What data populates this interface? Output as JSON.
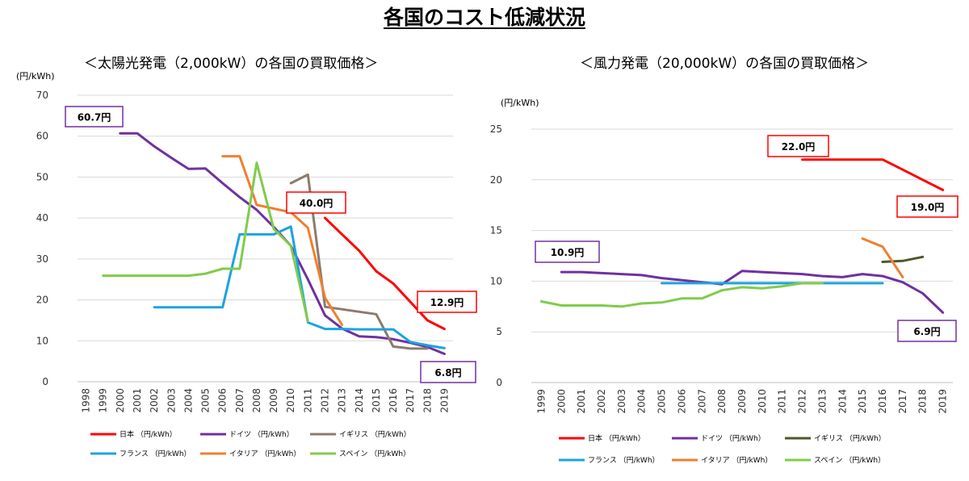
{
  "page": {
    "title": "各国のコスト低減状況"
  },
  "chart_data": [
    {
      "type": "line",
      "title": "＜太陽光発電（2,000kW）の各国の買取価格＞",
      "ylabel": "(円/kWh)",
      "ylim": [
        0,
        70
      ],
      "yticks": [
        0,
        10,
        20,
        30,
        40,
        50,
        60,
        70
      ],
      "grid": true,
      "categories": [
        "1998",
        "1999",
        "2000",
        "2001",
        "2002",
        "2003",
        "2004",
        "2005",
        "2006",
        "2007",
        "2008",
        "2009",
        "2010",
        "2011",
        "2012",
        "2013",
        "2014",
        "2015",
        "2016",
        "2017",
        "2018",
        "2019"
      ],
      "series": [
        {
          "name": "日本 （円/kWh）",
          "color": "#ff0000",
          "points": [
            [
              2012,
              40
            ],
            [
              2013,
              36
            ],
            [
              2014,
              32
            ],
            [
              2015,
              27
            ],
            [
              2016,
              24
            ],
            [
              2017,
              19.5
            ],
            [
              2018,
              15
            ],
            [
              2019,
              12.9
            ]
          ]
        },
        {
          "name": "ドイツ （円/kWh）",
          "color": "#7030a0",
          "points": [
            [
              2000,
              60.7
            ],
            [
              2001,
              60.7
            ],
            [
              2002,
              57.5
            ],
            [
              2003,
              54.7
            ],
            [
              2004,
              52
            ],
            [
              2005,
              52.1
            ],
            [
              2006,
              48.5
            ],
            [
              2007,
              45.1
            ],
            [
              2008,
              42
            ],
            [
              2009,
              37.8
            ],
            [
              2010,
              33.2
            ],
            [
              2011,
              25
            ],
            [
              2012,
              16.2
            ],
            [
              2013,
              13
            ],
            [
              2014,
              11.1
            ],
            [
              2015,
              10.9
            ],
            [
              2016,
              10.4
            ],
            [
              2017,
              9.5
            ],
            [
              2018,
              8.5
            ],
            [
              2019,
              6.8
            ]
          ]
        },
        {
          "name": "イギリス （円/kWh）",
          "color": "#8c7b6b",
          "points": [
            [
              2010,
              48.5
            ],
            [
              2011,
              50.6
            ],
            [
              2012,
              18.3
            ],
            [
              2013,
              17.7
            ],
            [
              2014,
              17.1
            ],
            [
              2015,
              16.5
            ],
            [
              2016,
              8.6
            ],
            [
              2017,
              8.1
            ],
            [
              2018,
              8.1
            ]
          ]
        },
        {
          "name": "フランス （円/kWh）",
          "color": "#1ca3e0",
          "points": [
            [
              2002,
              18.2
            ],
            [
              2003,
              18.2
            ],
            [
              2004,
              18.2
            ],
            [
              2005,
              18.2
            ],
            [
              2006,
              18.2
            ],
            [
              2007,
              36
            ],
            [
              2008,
              36
            ],
            [
              2009,
              36
            ],
            [
              2010,
              37.9
            ],
            [
              2011,
              14.5
            ],
            [
              2012,
              12.9
            ],
            [
              2013,
              12.9
            ],
            [
              2014,
              12.8
            ],
            [
              2015,
              12.8
            ],
            [
              2016,
              12.8
            ],
            [
              2017,
              9.7
            ],
            [
              2018,
              8.9
            ],
            [
              2019,
              8.2
            ]
          ]
        },
        {
          "name": "イタリア （円/kWh）",
          "color": "#f07f30",
          "points": [
            [
              2006,
              55.1
            ],
            [
              2007,
              55.1
            ],
            [
              2008,
              43.2
            ],
            [
              2009,
              42.3
            ],
            [
              2010,
              41.4
            ],
            [
              2011,
              37.6
            ],
            [
              2012,
              20.5
            ],
            [
              2013,
              13.9
            ]
          ]
        },
        {
          "name": "スペイン （円/kWh）",
          "color": "#7fcc4a",
          "points": [
            [
              1999,
              25.9
            ],
            [
              2000,
              25.9
            ],
            [
              2001,
              25.9
            ],
            [
              2002,
              25.9
            ],
            [
              2003,
              25.9
            ],
            [
              2004,
              25.9
            ],
            [
              2005,
              26.4
            ],
            [
              2006,
              27.6
            ],
            [
              2007,
              27.6
            ],
            [
              2008,
              53.5
            ],
            [
              2009,
              37.3
            ],
            [
              2010,
              33.2
            ],
            [
              2011,
              14.8
            ]
          ]
        }
      ],
      "annotations": [
        {
          "text": "60.7円",
          "color": "#7030a0"
        },
        {
          "text": "40.0円",
          "color": "#ff0000"
        },
        {
          "text": "12.9円",
          "color": "#ff0000"
        },
        {
          "text": "6.8円",
          "color": "#7030a0"
        }
      ]
    },
    {
      "type": "line",
      "title": "＜風力発電（20,000kW）の各国の買取価格＞",
      "ylabel": "(円/kWh)",
      "ylim": [
        0,
        25
      ],
      "yticks": [
        0,
        5,
        10,
        15,
        20,
        25
      ],
      "grid": true,
      "categories": [
        "1999",
        "2000",
        "2001",
        "2002",
        "2003",
        "2004",
        "2005",
        "2006",
        "2007",
        "2008",
        "2009",
        "2010",
        "2011",
        "2012",
        "2013",
        "2014",
        "2015",
        "2016",
        "2017",
        "2018",
        "2019"
      ],
      "series": [
        {
          "name": "日本 （円/kWh）",
          "color": "#ff0000",
          "points": [
            [
              2012,
              22
            ],
            [
              2013,
              22
            ],
            [
              2014,
              22
            ],
            [
              2015,
              22
            ],
            [
              2016,
              22
            ],
            [
              2017,
              21
            ],
            [
              2018,
              20
            ],
            [
              2019,
              19
            ]
          ]
        },
        {
          "name": "ドイツ （円/kWh）",
          "color": "#7030a0",
          "points": [
            [
              2000,
              10.9
            ],
            [
              2001,
              10.9
            ],
            [
              2002,
              10.8
            ],
            [
              2003,
              10.7
            ],
            [
              2004,
              10.6
            ],
            [
              2005,
              10.3
            ],
            [
              2006,
              10.1
            ],
            [
              2007,
              9.9
            ],
            [
              2008,
              9.7
            ],
            [
              2009,
              11
            ],
            [
              2010,
              10.9
            ],
            [
              2011,
              10.8
            ],
            [
              2012,
              10.7
            ],
            [
              2013,
              10.5
            ],
            [
              2014,
              10.4
            ],
            [
              2015,
              10.7
            ],
            [
              2016,
              10.5
            ],
            [
              2017,
              9.9
            ],
            [
              2018,
              8.8
            ],
            [
              2019,
              6.9
            ]
          ]
        },
        {
          "name": "イギリス （円/kWh）",
          "color": "#4b5a2a",
          "points": [
            [
              2016,
              11.9
            ],
            [
              2017,
              12
            ],
            [
              2018,
              12.4
            ]
          ]
        },
        {
          "name": "フランス （円/kWh）",
          "color": "#1ca3e0",
          "points": [
            [
              2005,
              9.8
            ],
            [
              2006,
              9.8
            ],
            [
              2007,
              9.8
            ],
            [
              2008,
              9.8
            ],
            [
              2009,
              9.8
            ],
            [
              2010,
              9.8
            ],
            [
              2011,
              9.8
            ],
            [
              2012,
              9.8
            ],
            [
              2013,
              9.8
            ],
            [
              2014,
              9.8
            ],
            [
              2015,
              9.8
            ],
            [
              2016,
              9.8
            ]
          ]
        },
        {
          "name": "イタリア （円/kWh）",
          "color": "#f07f30",
          "points": [
            [
              2015,
              14.2
            ],
            [
              2016,
              13.4
            ],
            [
              2017,
              10.4
            ]
          ]
        },
        {
          "name": "スペイン （円/kWh）",
          "color": "#7fcc4a",
          "points": [
            [
              1999,
              8
            ],
            [
              2000,
              7.6
            ],
            [
              2001,
              7.6
            ],
            [
              2002,
              7.6
            ],
            [
              2003,
              7.5
            ],
            [
              2004,
              7.8
            ],
            [
              2005,
              7.9
            ],
            [
              2006,
              8.3
            ],
            [
              2007,
              8.3
            ],
            [
              2008,
              9.1
            ],
            [
              2009,
              9.4
            ],
            [
              2010,
              9.3
            ],
            [
              2011,
              9.5
            ],
            [
              2012,
              9.8
            ],
            [
              2013,
              9.8
            ]
          ]
        }
      ],
      "annotations": [
        {
          "text": "22.0円",
          "color": "#ff0000"
        },
        {
          "text": "19.0円",
          "color": "#ff0000"
        },
        {
          "text": "10.9円",
          "color": "#7030a0"
        },
        {
          "text": "6.9円",
          "color": "#7030a0"
        }
      ]
    }
  ]
}
